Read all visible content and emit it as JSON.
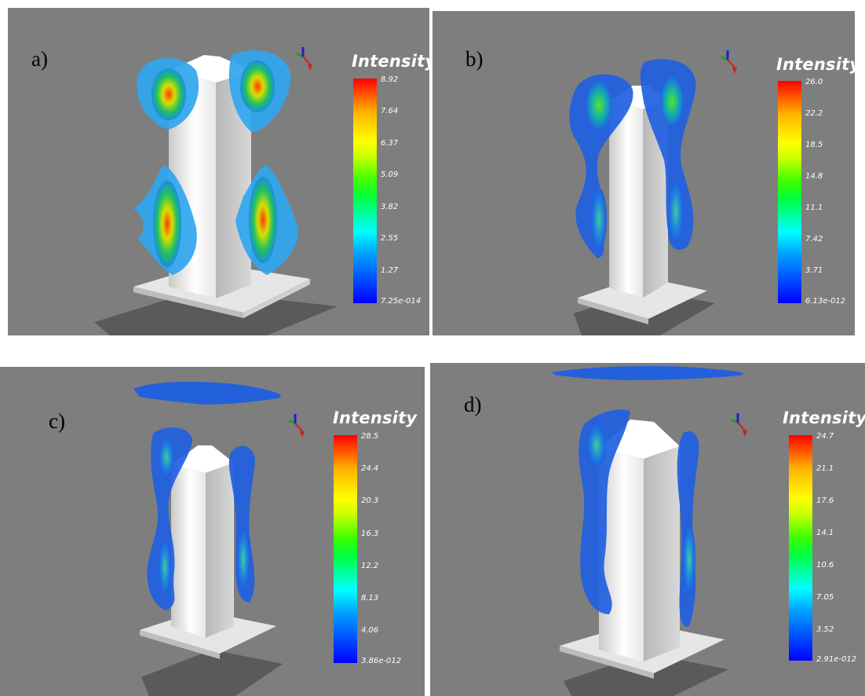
{
  "panels": [
    {
      "label": "a)",
      "colorbar": {
        "title": "Intensity",
        "ticks": [
          "8.92",
          "7.64",
          "6.37",
          "5.09",
          "3.82",
          "2.55",
          "1.27",
          "7.25e-014"
        ]
      }
    },
    {
      "label": "b)",
      "colorbar": {
        "title": "Intensity",
        "ticks": [
          "26.0",
          "22.2",
          "18.5",
          "14.8",
          "11.1",
          "7.42",
          "3.71",
          "6.13e-012"
        ]
      }
    },
    {
      "label": "c)",
      "colorbar": {
        "title": "Intensity",
        "ticks": [
          "28.5",
          "24.4",
          "20.3",
          "16.3",
          "12.2",
          "8.13",
          "4.06",
          "3.86e-012"
        ]
      }
    },
    {
      "label": "d)",
      "colorbar": {
        "title": "Intensity",
        "ticks": [
          "24.7",
          "21.1",
          "17.6",
          "14.1",
          "10.6",
          "7.05",
          "3.52",
          "2.91e-012"
        ]
      }
    }
  ],
  "colors": {
    "background": "#7e7e7e",
    "tower": "#f2f2f2",
    "isosurface": "#1f5fe0",
    "isosurface_light": "#3aa8ff"
  }
}
